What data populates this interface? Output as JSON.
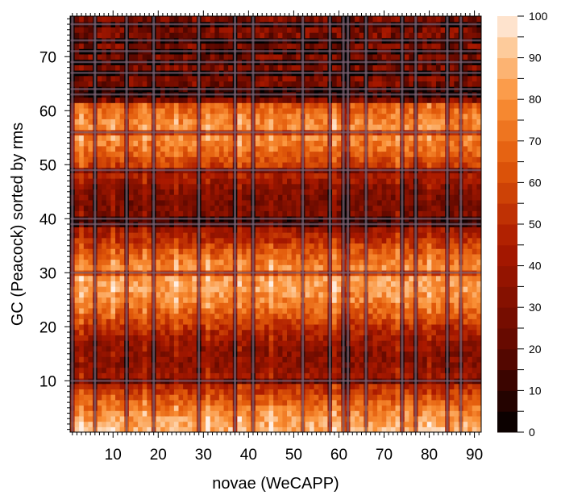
{
  "chart_data": {
    "type": "heatmap",
    "title": "",
    "xlabel": "novae (WeCAPP)",
    "ylabel": "GC (Peacock) sorted by rms",
    "xlim": [
      0.5,
      91.5
    ],
    "ylim": [
      0.5,
      77.5
    ],
    "x_ticks": [
      10,
      20,
      30,
      40,
      50,
      60,
      70,
      80,
      90
    ],
    "y_ticks": [
      10,
      20,
      30,
      40,
      50,
      60,
      70
    ],
    "colorbar": {
      "min": 0,
      "max": 100,
      "step": 5,
      "ticks": [
        0,
        10,
        20,
        30,
        40,
        50,
        60,
        70,
        80,
        90,
        100
      ]
    },
    "colormap": "gist_heat",
    "colors": {
      "low": "#000000",
      "high": "#fff0e6",
      "line": "#7a6070"
    },
    "dark_columns_x": [
      1,
      6,
      13,
      19,
      29,
      37,
      41,
      52,
      58,
      61,
      62,
      66,
      74,
      77,
      84,
      87
    ],
    "dark_rows_y": [
      10,
      30,
      39,
      40,
      49,
      56,
      63,
      64,
      67,
      69,
      71,
      73,
      76
    ],
    "grid": false
  }
}
